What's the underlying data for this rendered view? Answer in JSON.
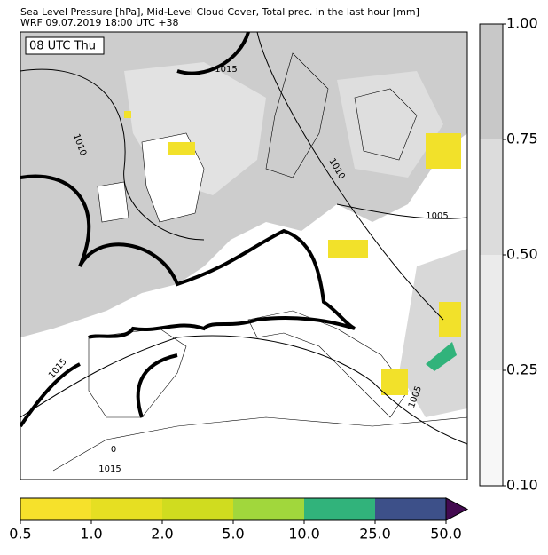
{
  "header": {
    "title": "Sea Level Pressure [hPa], Mid-Level Cloud Cover, Total prec. in the last hour [mm]",
    "subtitle": "WRF 09.07.2019 18:00 UTC +38"
  },
  "map": {
    "time_label": "08 UTC Thu",
    "contour_labels": [
      "1015",
      "1010",
      "1010",
      "1005",
      "1015",
      "1005",
      "1015",
      "0"
    ]
  },
  "precip_colorbar": {
    "ticks": [
      {
        "value": 0.5,
        "label": "0.5"
      },
      {
        "value": 1,
        "label": "1.0"
      },
      {
        "value": 2,
        "label": "2.0"
      },
      {
        "value": 5,
        "label": "5.0"
      },
      {
        "value": 10,
        "label": "10.0"
      },
      {
        "value": 25,
        "label": "25.0"
      },
      {
        "value": 50,
        "label": "50.0"
      }
    ],
    "colors": [
      "#f6e12b",
      "#e6df22",
      "#d0dc1f",
      "#a1d73c",
      "#31b37b",
      "#3d5089",
      "#430a50"
    ]
  },
  "cloud_colorbar": {
    "ticks": [
      {
        "value": 0.1,
        "label": "0.10"
      },
      {
        "value": 0.25,
        "label": "0.25"
      },
      {
        "value": 0.5,
        "label": "0.50"
      },
      {
        "value": 0.75,
        "label": "0.75"
      },
      {
        "value": 1,
        "label": "1.00"
      }
    ],
    "colors": [
      "#f7f7f7",
      "#ebebeb",
      "#dcdcdc",
      "#c8c8c8"
    ]
  }
}
